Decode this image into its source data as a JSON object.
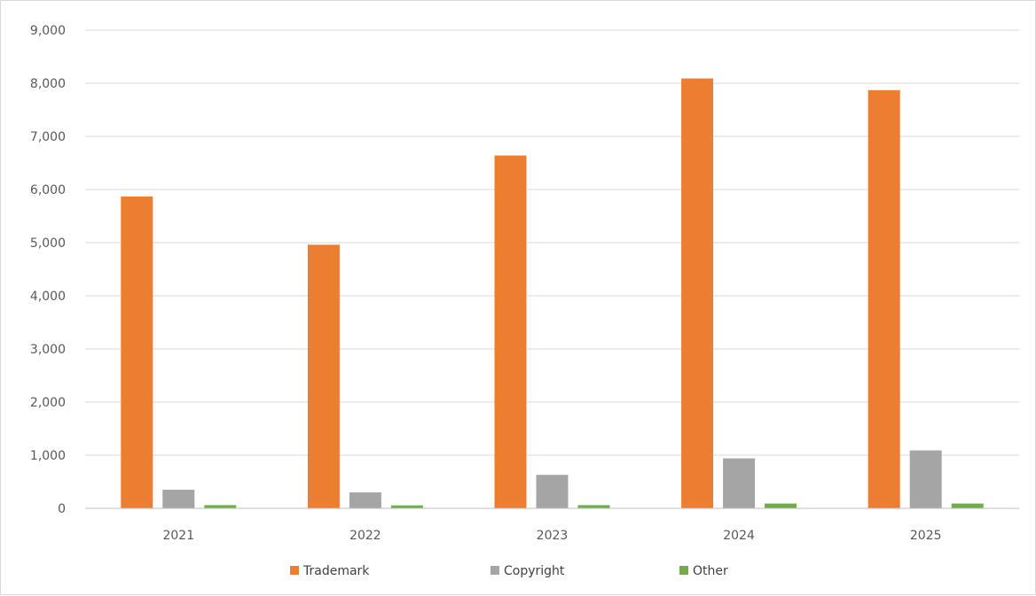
{
  "chart_data": {
    "type": "bar",
    "categories": [
      "2021",
      "2022",
      "2023",
      "2024",
      "2025"
    ],
    "series": [
      {
        "name": "Trademark",
        "color": "#ed7d31",
        "values": [
          5870,
          4960,
          6640,
          8090,
          7870
        ]
      },
      {
        "name": "Copyright",
        "color": "#a5a5a5",
        "values": [
          350,
          300,
          630,
          940,
          1090
        ]
      },
      {
        "name": "Other",
        "color": "#70ad47",
        "values": [
          60,
          55,
          60,
          90,
          90
        ]
      }
    ],
    "ylim": [
      0,
      9000
    ],
    "yticks": [
      0,
      1000,
      2000,
      3000,
      4000,
      5000,
      6000,
      7000,
      8000,
      9000
    ],
    "ytick_labels": [
      "0",
      "1,000",
      "2,000",
      "3,000",
      "4,000",
      "5,000",
      "6,000",
      "7,000",
      "8,000",
      "9,000"
    ],
    "grid": true,
    "legend_position": "bottom"
  }
}
